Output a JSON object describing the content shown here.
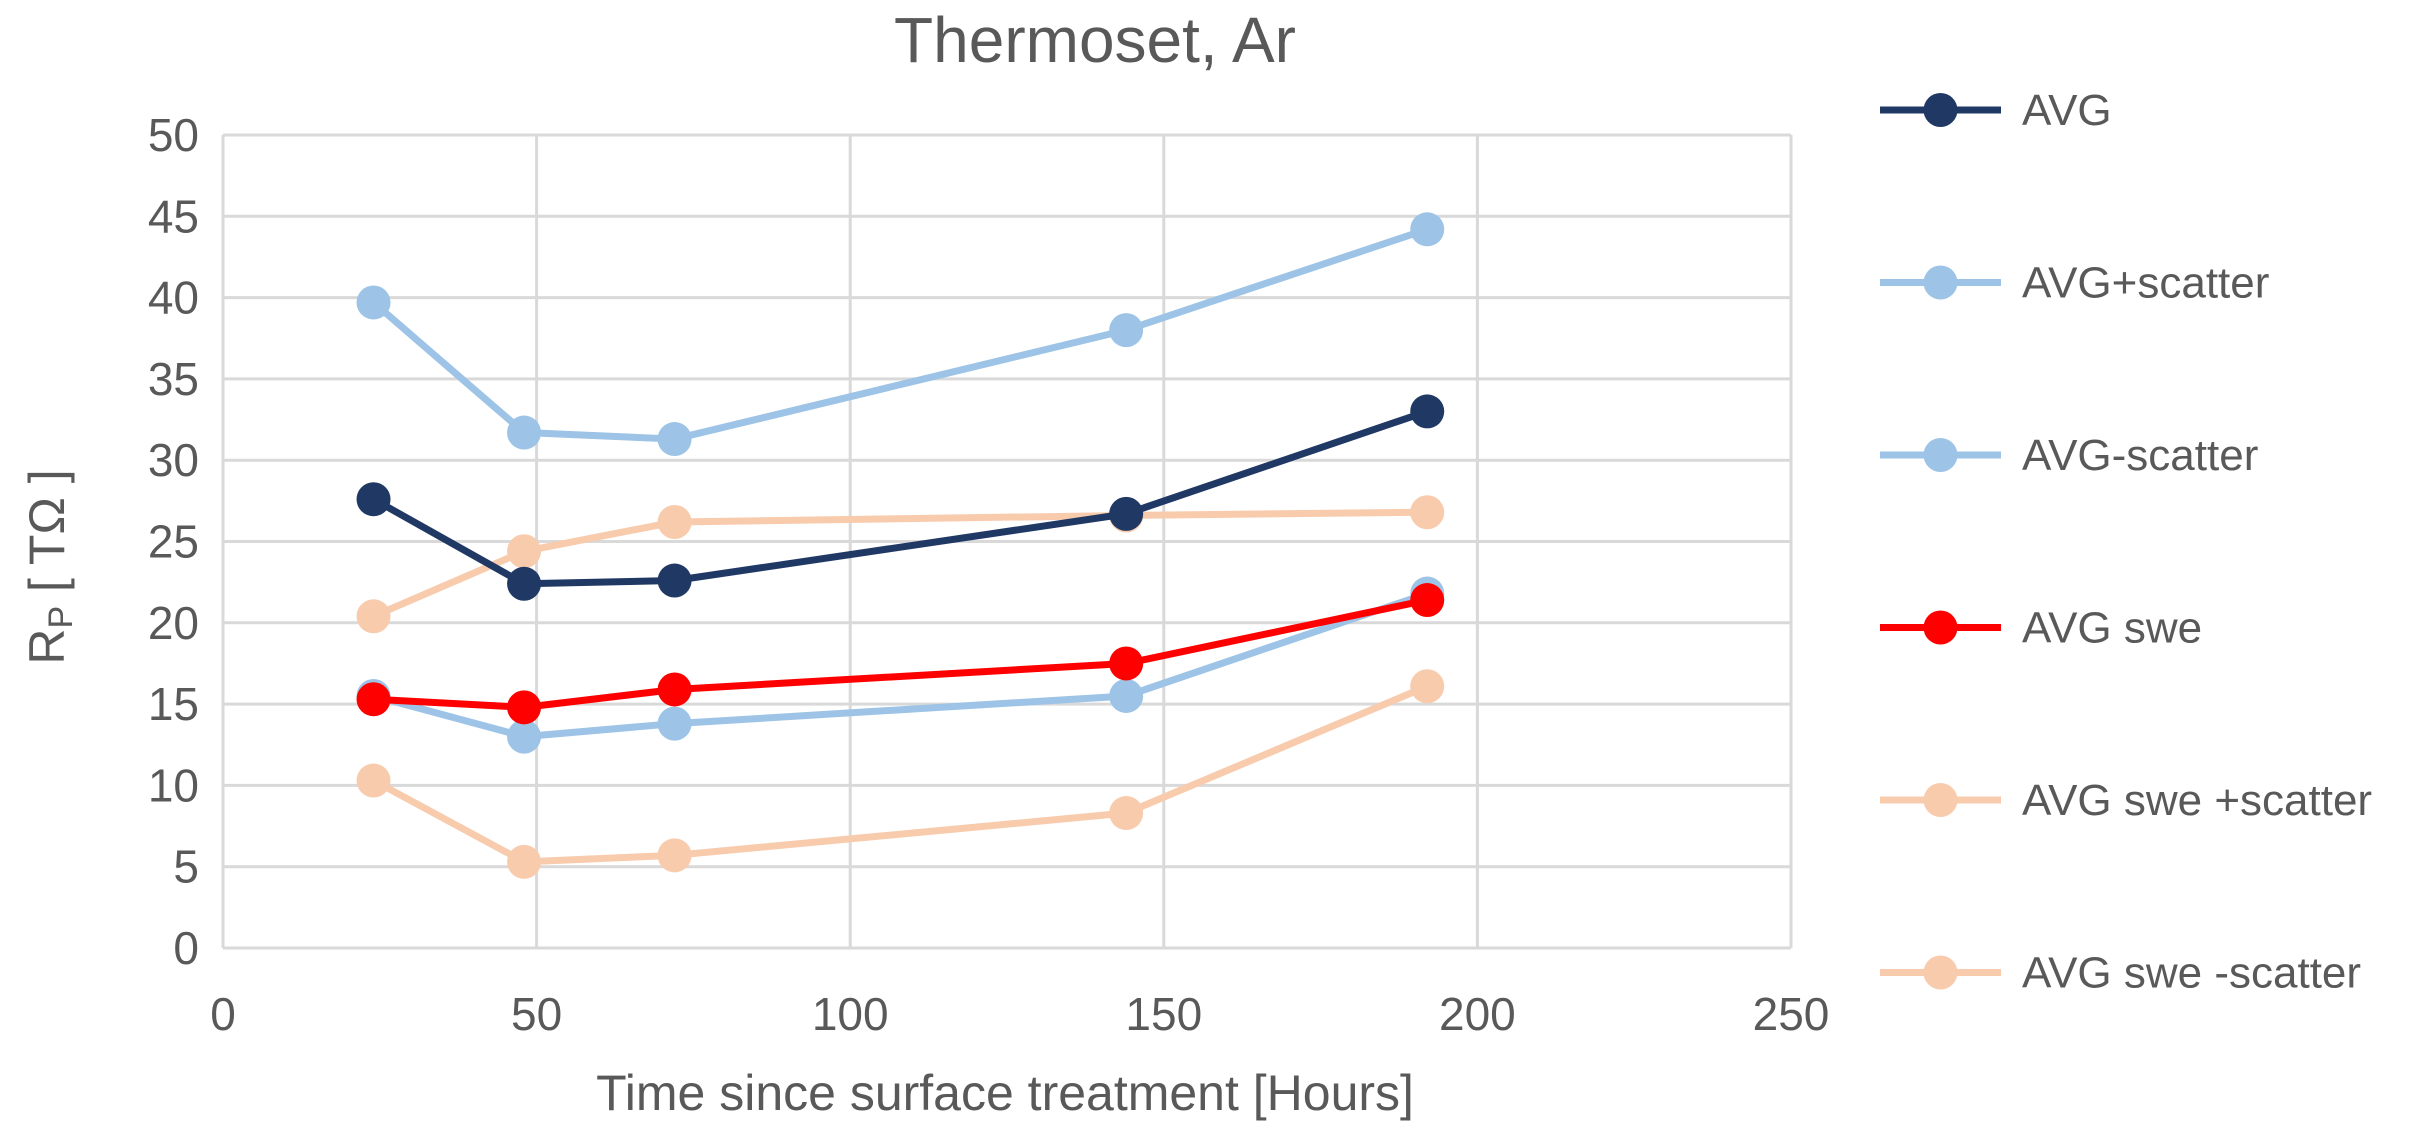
{
  "chart_data": {
    "type": "line",
    "title": "Thermoset, Ar",
    "xlabel": "Time since surface treatment [Hours]",
    "ylabel": "R",
    "ylabel_sub": "P",
    "ylabel_unit": " [ TΩ ]",
    "xlim": [
      0,
      250
    ],
    "ylim": [
      0,
      50
    ],
    "xticks": [
      0,
      50,
      100,
      150,
      200,
      250
    ],
    "yticks": [
      0,
      5,
      10,
      15,
      20,
      25,
      30,
      35,
      40,
      45,
      50
    ],
    "grid": true,
    "legend_position": "right",
    "series": [
      {
        "name": "AVG",
        "color": "#203864",
        "x": [
          24,
          48,
          72,
          144,
          192
        ],
        "values": [
          27.6,
          22.4,
          22.6,
          26.7,
          33.0
        ]
      },
      {
        "name": "AVG+scatter",
        "color": "#9DC3E6",
        "x": [
          24,
          48,
          72,
          144,
          192
        ],
        "values": [
          39.7,
          31.7,
          31.3,
          38.0,
          44.2
        ]
      },
      {
        "name": "AVG-scatter",
        "color": "#9DC3E6",
        "x": [
          24,
          48,
          72,
          144,
          192
        ],
        "values": [
          15.5,
          13.0,
          13.8,
          15.5,
          21.8
        ]
      },
      {
        "name": "AVG swe",
        "color": "#FF0000",
        "x": [
          24,
          48,
          72,
          144,
          192
        ],
        "values": [
          15.3,
          14.8,
          15.9,
          17.5,
          21.4
        ]
      },
      {
        "name": "AVG swe +scatter",
        "color": "#F8CBAD",
        "x": [
          24,
          48,
          72,
          144,
          192
        ],
        "values": [
          20.4,
          24.4,
          26.2,
          26.6,
          26.8
        ]
      },
      {
        "name": "AVG swe -scatter",
        "color": "#F8CBAD",
        "x": [
          24,
          48,
          72,
          144,
          192
        ],
        "values": [
          10.3,
          5.3,
          5.7,
          8.3,
          16.1
        ]
      }
    ]
  }
}
